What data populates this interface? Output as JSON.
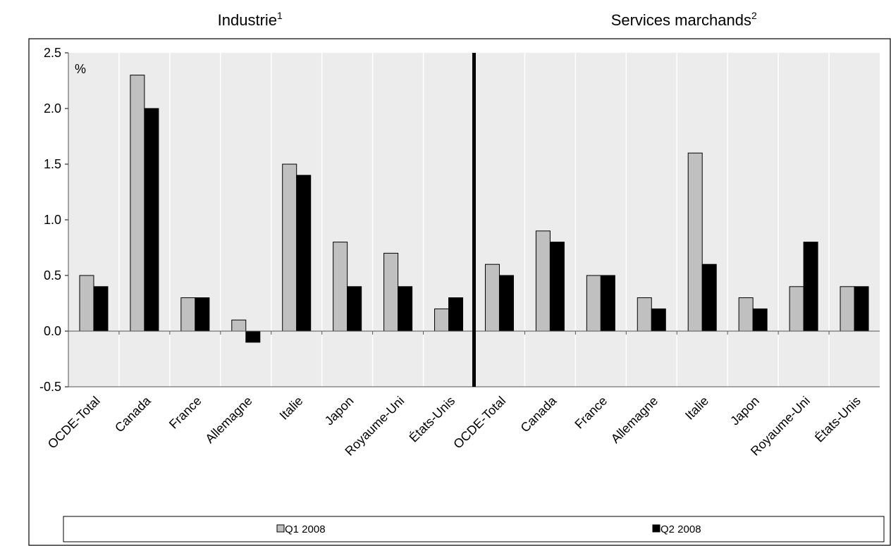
{
  "chart_data": {
    "type": "bar",
    "unit_label": "%",
    "ylim": [
      -0.5,
      2.5
    ],
    "yticks": [
      2.5,
      2.0,
      1.5,
      1.0,
      0.5,
      0.0,
      -0.5
    ],
    "ytick_labels": [
      "2.5",
      "2.0",
      "1.5",
      "1.0",
      "0.5",
      "0.0",
      "-0.5"
    ],
    "grid": "vertical",
    "legend_position": "bottom",
    "colors": {
      "q1": "#c0c0c0",
      "q2": "#000000",
      "plot_bg": "#ececec",
      "grid": "#ffffff"
    },
    "panels": [
      {
        "title": "Industrie",
        "title_sup": "1",
        "categories": [
          "OCDE-Total",
          "Canada",
          "France",
          "Allemagne",
          "Italie",
          "Japon",
          "Royaume-Uni",
          "États-Unis"
        ],
        "series": [
          {
            "name": "Q1  2008",
            "values": [
              0.5,
              2.3,
              0.3,
              0.1,
              1.5,
              0.8,
              0.7,
              0.2
            ]
          },
          {
            "name": "Q2  2008",
            "values": [
              0.4,
              2.0,
              0.3,
              -0.1,
              1.4,
              0.4,
              0.4,
              0.3
            ]
          }
        ]
      },
      {
        "title": "Services marchands",
        "title_sup": "2",
        "categories": [
          "OCDE-Total",
          "Canada",
          "France",
          "Allemagne",
          "Italie",
          "Japon",
          "Royaume-Uni",
          "États-Unis"
        ],
        "series": [
          {
            "name": "Q1  2008",
            "values": [
              0.6,
              0.9,
              0.5,
              0.3,
              1.6,
              0.3,
              0.4,
              0.4
            ]
          },
          {
            "name": "Q2  2008",
            "values": [
              0.5,
              0.8,
              0.5,
              0.2,
              0.6,
              0.2,
              0.8,
              0.4
            ]
          }
        ]
      }
    ],
    "legend": [
      "Q1  2008",
      "Q2  2008"
    ]
  }
}
